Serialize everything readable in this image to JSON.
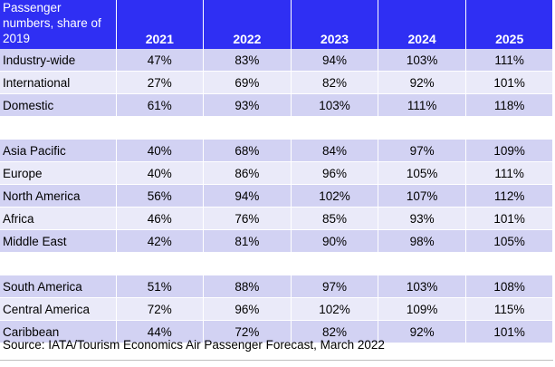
{
  "chart_data": {
    "type": "table",
    "header_label": "Passenger numbers, share of 2019",
    "columns": [
      "2021",
      "2022",
      "2023",
      "2024",
      "2025"
    ],
    "groups": [
      {
        "rows": [
          {
            "label": "Industry-wide",
            "values": [
              "47%",
              "83%",
              "94%",
              "103%",
              "111%"
            ]
          },
          {
            "label": "International",
            "values": [
              "27%",
              "69%",
              "82%",
              "92%",
              "101%"
            ]
          },
          {
            "label": "Domestic",
            "values": [
              "61%",
              "93%",
              "103%",
              "111%",
              "118%"
            ]
          }
        ]
      },
      {
        "rows": [
          {
            "label": "Asia Pacific",
            "values": [
              "40%",
              "68%",
              "84%",
              "97%",
              "109%"
            ]
          },
          {
            "label": "Europe",
            "values": [
              "40%",
              "86%",
              "96%",
              "105%",
              "111%"
            ]
          },
          {
            "label": "North America",
            "values": [
              "56%",
              "94%",
              "102%",
              "107%",
              "112%"
            ]
          },
          {
            "label": "Africa",
            "values": [
              "46%",
              "76%",
              "85%",
              "93%",
              "101%"
            ]
          },
          {
            "label": "Middle East",
            "values": [
              "42%",
              "81%",
              "90%",
              "98%",
              "105%"
            ]
          }
        ]
      },
      {
        "rows": [
          {
            "label": "South America",
            "values": [
              "51%",
              "88%",
              "97%",
              "103%",
              "108%"
            ]
          },
          {
            "label": "Central America",
            "values": [
              "72%",
              "96%",
              "102%",
              "109%",
              "115%"
            ]
          },
          {
            "label": "Caribbean",
            "values": [
              "44%",
              "72%",
              "82%",
              "92%",
              "101%"
            ]
          }
        ]
      }
    ],
    "source": "Source: IATA/Tourism Economics Air Passenger Forecast, March 2022"
  },
  "colors": {
    "header_background": "#2f2ff3",
    "header_text": "#ffffff",
    "row_dark": "#d2d2f3",
    "row_light": "#eaeaf9"
  }
}
